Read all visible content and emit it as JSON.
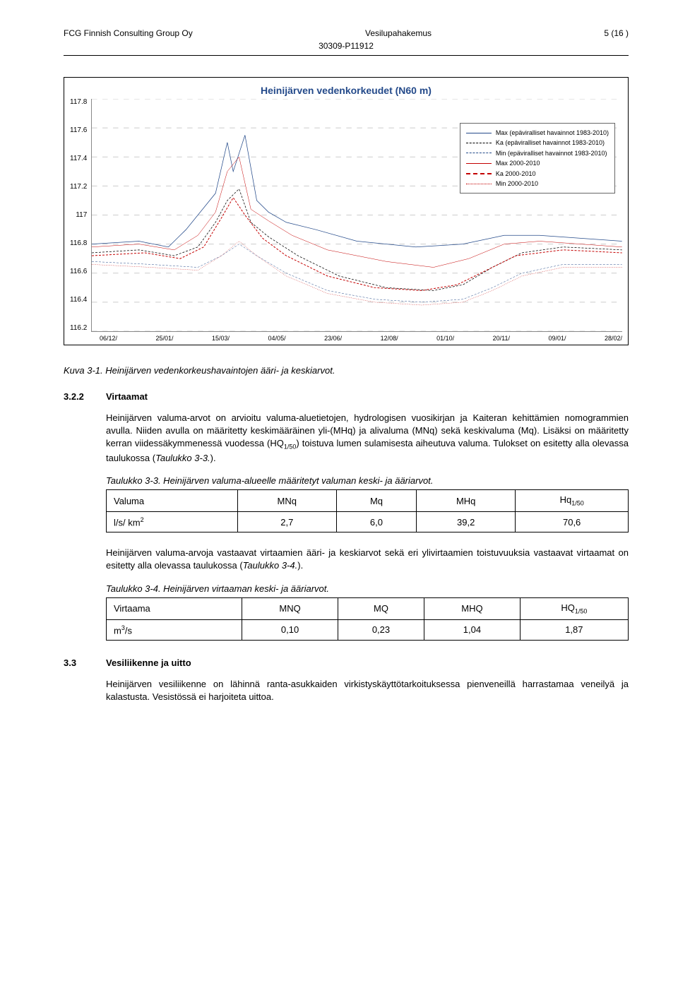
{
  "header": {
    "left": "FCG Finnish Consulting Group Oy",
    "center": "Vesilupahakemus",
    "right": "5 (16 )",
    "sub": "30309-P11912"
  },
  "chart": {
    "title": "Heinijärven vedenkorkeudet (N60 m)",
    "y_ticks": [
      "117.8",
      "117.6",
      "117.4",
      "117.2",
      "117",
      "116.8",
      "116.6",
      "116.4",
      "116.2"
    ],
    "x_ticks": [
      "06/12/",
      "25/01/",
      "15/03/",
      "04/05/",
      "23/06/",
      "12/08/",
      "01/10/",
      "20/11/",
      "09/01/",
      "28/02/"
    ],
    "legend": [
      {
        "label": "Max (epäviralliset havainnot 1983-2010)",
        "color": "#244a8a",
        "style": "solid",
        "width": 1.5
      },
      {
        "label": "Ka (epäviralliset havainnot 1983-2010)",
        "color": "#000000",
        "style": "dashed",
        "width": 1.5
      },
      {
        "label": "Min (epäviralliset havainnot 1983-2010)",
        "color": "#244a8a",
        "style": "dashed",
        "width": 1
      },
      {
        "label": "Max 2000-2010",
        "color": "#c40000",
        "style": "solid",
        "width": 1
      },
      {
        "label": "Ka 2000-2010",
        "color": "#c40000",
        "style": "dashed",
        "width": 2
      },
      {
        "label": "Min 2000-2010",
        "color": "#c40000",
        "style": "dotted",
        "width": 1
      }
    ],
    "ylim": [
      116.2,
      117.8
    ],
    "xlim": [
      0,
      9
    ],
    "grid_color": "#cccccc",
    "background": "#ffffff",
    "series": {
      "max_1983": {
        "color": "#244a8a",
        "style": "solid",
        "width": 1.5,
        "pts": [
          [
            0.0,
            116.8
          ],
          [
            0.8,
            116.82
          ],
          [
            1.3,
            116.78
          ],
          [
            1.6,
            116.9
          ],
          [
            1.9,
            117.05
          ],
          [
            2.1,
            117.15
          ],
          [
            2.3,
            117.5
          ],
          [
            2.4,
            117.3
          ],
          [
            2.6,
            117.55
          ],
          [
            2.8,
            117.1
          ],
          [
            3.0,
            117.02
          ],
          [
            3.3,
            116.95
          ],
          [
            3.8,
            116.9
          ],
          [
            4.5,
            116.82
          ],
          [
            5.5,
            116.78
          ],
          [
            6.3,
            116.8
          ],
          [
            7.0,
            116.86
          ],
          [
            7.6,
            116.86
          ],
          [
            8.3,
            116.84
          ],
          [
            9.0,
            116.82
          ]
        ]
      },
      "ka_1983": {
        "color": "#000000",
        "style": "dashed",
        "width": 1.5,
        "pts": [
          [
            0.0,
            116.74
          ],
          [
            0.8,
            116.76
          ],
          [
            1.4,
            116.72
          ],
          [
            1.8,
            116.78
          ],
          [
            2.1,
            116.95
          ],
          [
            2.3,
            117.1
          ],
          [
            2.5,
            117.18
          ],
          [
            2.7,
            116.95
          ],
          [
            3.0,
            116.85
          ],
          [
            3.5,
            116.72
          ],
          [
            4.2,
            116.58
          ],
          [
            5.0,
            116.5
          ],
          [
            5.8,
            116.48
          ],
          [
            6.3,
            116.52
          ],
          [
            6.8,
            116.64
          ],
          [
            7.3,
            116.74
          ],
          [
            8.0,
            116.78
          ],
          [
            9.0,
            116.76
          ]
        ]
      },
      "min_1983": {
        "color": "#244a8a",
        "style": "dashed",
        "width": 1,
        "pts": [
          [
            0.0,
            116.68
          ],
          [
            1.0,
            116.66
          ],
          [
            1.8,
            116.64
          ],
          [
            2.2,
            116.72
          ],
          [
            2.5,
            116.8
          ],
          [
            2.8,
            116.72
          ],
          [
            3.3,
            116.6
          ],
          [
            4.0,
            116.48
          ],
          [
            4.8,
            116.42
          ],
          [
            5.6,
            116.4
          ],
          [
            6.3,
            116.42
          ],
          [
            6.8,
            116.5
          ],
          [
            7.3,
            116.6
          ],
          [
            8.0,
            116.66
          ],
          [
            9.0,
            116.66
          ]
        ]
      },
      "max_2000": {
        "color": "#c40000",
        "style": "solid",
        "width": 1,
        "pts": [
          [
            0.0,
            116.78
          ],
          [
            0.8,
            116.8
          ],
          [
            1.4,
            116.76
          ],
          [
            1.8,
            116.86
          ],
          [
            2.1,
            117.02
          ],
          [
            2.3,
            117.3
          ],
          [
            2.5,
            117.4
          ],
          [
            2.7,
            117.04
          ],
          [
            3.0,
            116.96
          ],
          [
            3.4,
            116.86
          ],
          [
            4.0,
            116.76
          ],
          [
            5.0,
            116.68
          ],
          [
            5.8,
            116.64
          ],
          [
            6.4,
            116.7
          ],
          [
            7.0,
            116.8
          ],
          [
            7.6,
            116.82
          ],
          [
            8.3,
            116.8
          ],
          [
            9.0,
            116.78
          ]
        ]
      },
      "ka_2000": {
        "color": "#c40000",
        "style": "dashed",
        "width": 2,
        "pts": [
          [
            0.0,
            116.72
          ],
          [
            0.9,
            116.74
          ],
          [
            1.5,
            116.7
          ],
          [
            1.9,
            116.78
          ],
          [
            2.2,
            116.98
          ],
          [
            2.4,
            117.12
          ],
          [
            2.6,
            117.0
          ],
          [
            2.9,
            116.84
          ],
          [
            3.3,
            116.72
          ],
          [
            4.0,
            116.58
          ],
          [
            4.8,
            116.5
          ],
          [
            5.6,
            116.48
          ],
          [
            6.2,
            116.52
          ],
          [
            6.7,
            116.62
          ],
          [
            7.2,
            116.72
          ],
          [
            8.0,
            116.76
          ],
          [
            9.0,
            116.74
          ]
        ]
      },
      "min_2000": {
        "color": "#c40000",
        "style": "dotted",
        "width": 1,
        "pts": [
          [
            0.0,
            116.66
          ],
          [
            1.0,
            116.64
          ],
          [
            1.8,
            116.62
          ],
          [
            2.2,
            116.72
          ],
          [
            2.5,
            116.82
          ],
          [
            2.8,
            116.72
          ],
          [
            3.3,
            116.58
          ],
          [
            4.0,
            116.46
          ],
          [
            4.8,
            116.4
          ],
          [
            5.6,
            116.38
          ],
          [
            6.3,
            116.4
          ],
          [
            6.8,
            116.48
          ],
          [
            7.3,
            116.58
          ],
          [
            8.0,
            116.64
          ],
          [
            9.0,
            116.64
          ]
        ]
      }
    }
  },
  "figure_caption": "Kuva 3-1. Heinijärven vedenkorkeushavaintojen ääri- ja keskiarvot.",
  "sec322": {
    "num": "3.2.2",
    "title": "Virtaamat"
  },
  "para1": "Heinijärven valuma-arvot on arvioitu valuma-aluetietojen, hydrologisen vuosikirjan ja Kaiteran kehittämien nomogrammien avulla. Niiden avulla on määritetty keskimääräinen yli-(MHq) ja alivaluma (MNq) sekä keskivaluma (Mq). Lisäksi on määritetty kerran viidessäkymmenessä vuodessa (HQ1/50) toistuva lumen sulamisesta aiheutuva valuma. Tulokset on esitetty alla olevassa taulukossa (Taulukko 3-3.).",
  "tab33": {
    "caption": "Taulukko 3-3. Heinijärven valuma-alueelle määritetyt valuman keski- ja ääriarvot.",
    "headers": [
      "Valuma",
      "MNq",
      "Mq",
      "MHq",
      "Hq"
    ],
    "hsub": [
      "",
      "",
      "",
      "",
      "1/50"
    ],
    "row_label_html": "l/s/ km<span class='sup'>2</span>",
    "cells": [
      "2,7",
      "6,0",
      "39,2",
      "70,6"
    ]
  },
  "para2": "Heinijärven valuma-arvoja vastaavat virtaamien ääri- ja keskiarvot sekä eri ylivirtaamien toistuvuuksia vastaavat virtaamat on esitetty alla olevassa taulukossa (Taulukko 3-4.).",
  "tab34": {
    "caption": "Taulukko 3-4. Heinijärven virtaaman keski- ja ääriarvot.",
    "headers": [
      "Virtaama",
      "MNQ",
      "MQ",
      "MHQ",
      "HQ"
    ],
    "hsub": [
      "",
      "",
      "",
      "",
      "1/50"
    ],
    "row_label_html": "m<span class='sup'>3</span>/s",
    "cells": [
      "0,10",
      "0,23",
      "1,04",
      "1,87"
    ]
  },
  "sec33": {
    "num": "3.3",
    "title": "Vesiliikenne ja uitto"
  },
  "para3": "Heinijärven vesiliikenne on lähinnä ranta-asukkaiden virkistyskäyttötarkoituksessa pienveneillä harrastamaa veneilyä ja kalastusta. Vesistössä ei harjoiteta uittoa."
}
